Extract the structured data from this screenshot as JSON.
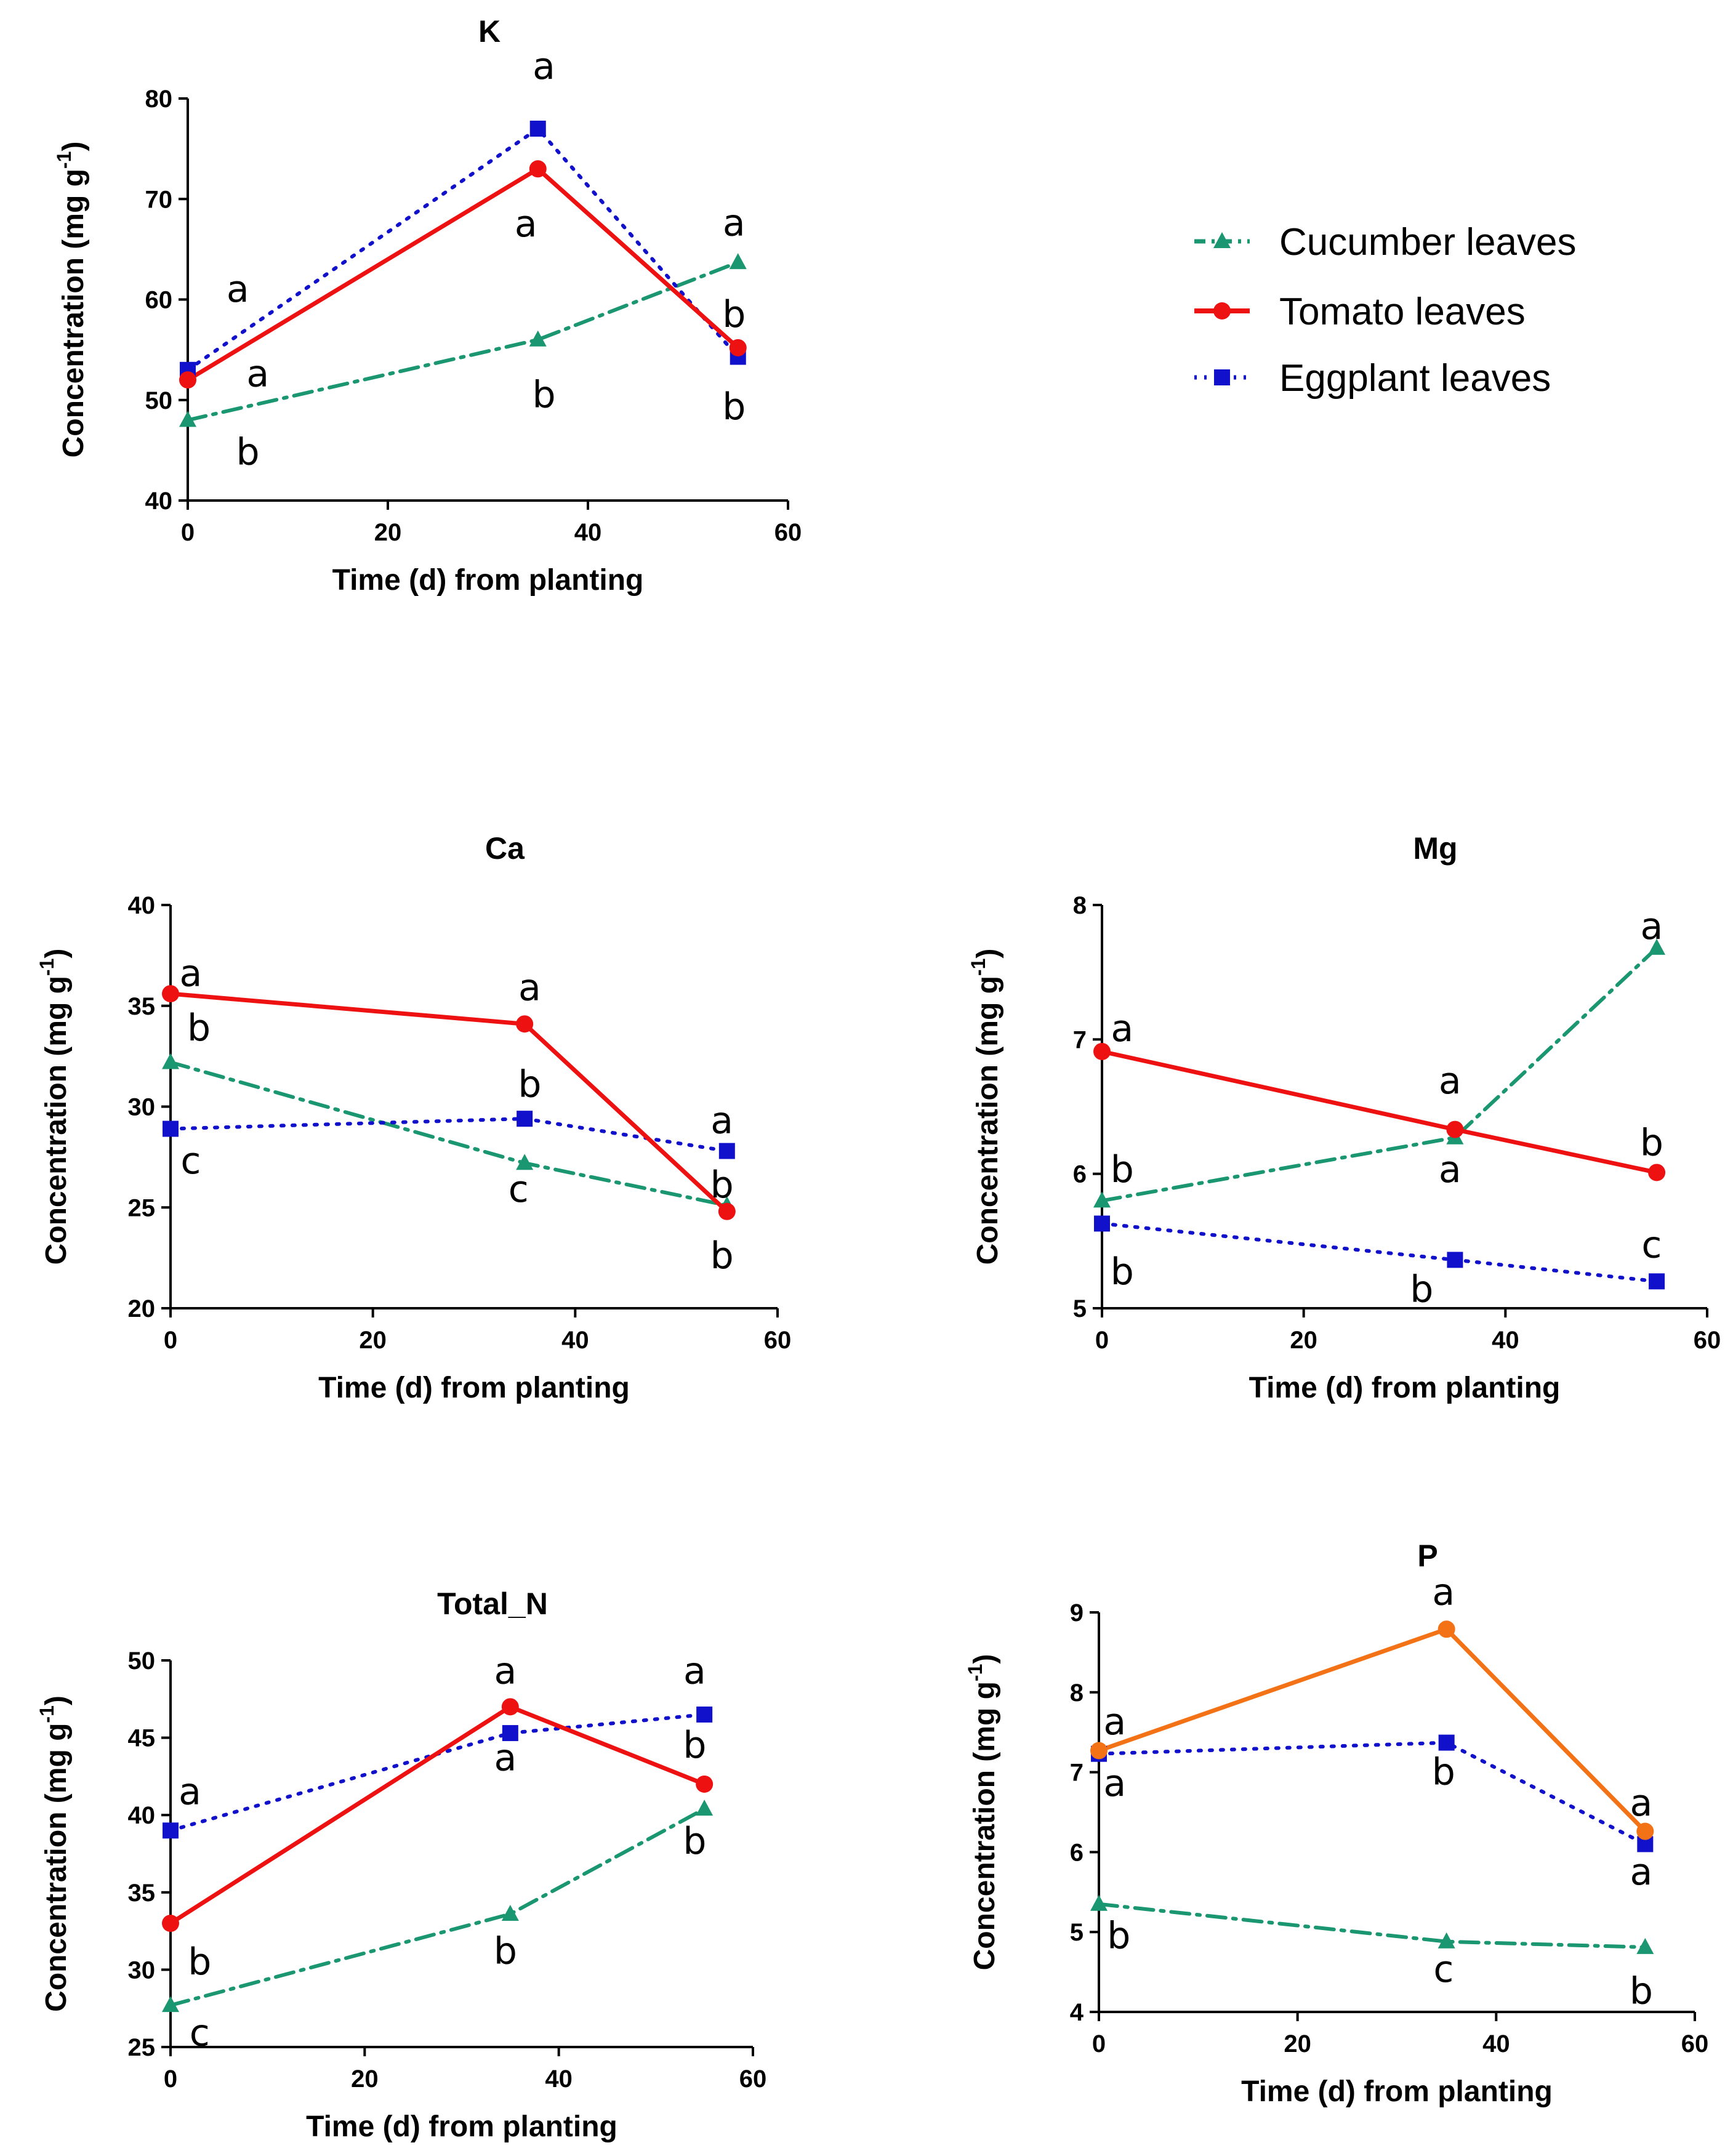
{
  "legend": {
    "items": [
      {
        "label": "Cucumber leaves",
        "series": "cucumber"
      },
      {
        "label": "Tomato leaves",
        "series": "tomato"
      },
      {
        "label": "Eggplant leaves",
        "series": "eggplant"
      }
    ]
  },
  "styles": {
    "cucumber": {
      "color": "#1a9670",
      "marker": "triangle",
      "dash": "dashdot"
    },
    "tomato": {
      "color": "#ee1111",
      "marker": "circle",
      "dash": "solid"
    },
    "eggplant": {
      "color": "#1111cc",
      "marker": "square",
      "dash": "dotted"
    }
  },
  "chart_data": [
    {
      "id": "K",
      "type": "line",
      "title": "K",
      "xlabel": "Time (d) from planting",
      "ylabel_main": "Concentration (mg g",
      "ylabel_sup": "-1",
      "ylabel_end": ")",
      "xlim": [
        0,
        60
      ],
      "ylim": [
        40,
        80
      ],
      "xticks": [
        "0",
        "20",
        "40",
        "60"
      ],
      "yticks": [
        "40",
        "50",
        "60",
        "70",
        "80"
      ],
      "x": [
        0,
        35,
        55
      ],
      "series": [
        {
          "name": "Cucumber leaves",
          "key": "cucumber",
          "values": [
            48,
            56,
            63.7
          ]
        },
        {
          "name": "Tomato leaves",
          "key": "tomato",
          "values": [
            52,
            73,
            55.2
          ]
        },
        {
          "name": "Eggplant leaves",
          "key": "eggplant",
          "values": [
            53,
            77,
            54.3
          ]
        }
      ],
      "annotations": [
        {
          "text": "a",
          "x": 5,
          "y": 61
        },
        {
          "text": "a",
          "x": 7,
          "y": 52.6
        },
        {
          "text": "b",
          "x": 6,
          "y": 44.8
        },
        {
          "text": "a",
          "x": 35.6,
          "y": 83.2
        },
        {
          "text": "a",
          "x": 33.8,
          "y": 67.5
        },
        {
          "text": "b",
          "x": 35.6,
          "y": 50.5
        },
        {
          "text": "a",
          "x": 54.6,
          "y": 67.6
        },
        {
          "text": "b",
          "x": 54.6,
          "y": 58.5
        },
        {
          "text": "b",
          "x": 54.6,
          "y": 49.3
        }
      ]
    },
    {
      "id": "Ca",
      "type": "line",
      "title": "Ca",
      "xlabel": "Time (d) from planting",
      "ylabel_main": "Concentration (mg g",
      "ylabel_sup": "-1",
      "ylabel_end": ")",
      "xlim": [
        0,
        60
      ],
      "ylim": [
        20,
        40
      ],
      "xticks": [
        "0",
        "20",
        "40",
        "60"
      ],
      "yticks": [
        "20",
        "25",
        "30",
        "35",
        "40"
      ],
      "x": [
        0,
        35,
        55
      ],
      "series": [
        {
          "name": "Cucumber leaves",
          "key": "cucumber",
          "values": [
            32.2,
            27.2,
            25.1
          ]
        },
        {
          "name": "Tomato leaves",
          "key": "tomato",
          "values": [
            35.6,
            34.1,
            24.8
          ]
        },
        {
          "name": "Eggplant leaves",
          "key": "eggplant",
          "values": [
            28.9,
            29.4,
            27.8
          ]
        }
      ],
      "annotations": [
        {
          "text": "a",
          "x": 2,
          "y": 36.6
        },
        {
          "text": "b",
          "x": 2.8,
          "y": 33.9
        },
        {
          "text": "c",
          "x": 2,
          "y": 27.3
        },
        {
          "text": "a",
          "x": 35.5,
          "y": 35.9
        },
        {
          "text": "b",
          "x": 35.5,
          "y": 31.1
        },
        {
          "text": "c",
          "x": 34.4,
          "y": 25.9
        },
        {
          "text": "a",
          "x": 54.5,
          "y": 29.3
        },
        {
          "text": "b",
          "x": 54.5,
          "y": 26.1
        },
        {
          "text": "b",
          "x": 54.5,
          "y": 22.6
        }
      ]
    },
    {
      "id": "Mg",
      "type": "line",
      "title": "Mg",
      "xlabel": "Time (d) from planting",
      "ylabel_main": "Concentration (mg g",
      "ylabel_sup": "-1",
      "ylabel_end": ")",
      "xlim": [
        0,
        60
      ],
      "ylim": [
        5,
        8
      ],
      "xticks": [
        "0",
        "20",
        "40",
        "60"
      ],
      "yticks": [
        "5",
        "6",
        "7",
        "8"
      ],
      "x": [
        0,
        35,
        55
      ],
      "series": [
        {
          "name": "Cucumber leaves",
          "key": "cucumber",
          "values": [
            5.8,
            6.27,
            7.68
          ]
        },
        {
          "name": "Tomato leaves",
          "key": "tomato",
          "values": [
            6.91,
            6.33,
            6.01
          ]
        },
        {
          "name": "Eggplant leaves",
          "key": "eggplant",
          "values": [
            5.63,
            5.36,
            5.2
          ]
        }
      ],
      "annotations": [
        {
          "text": "a",
          "x": 2,
          "y": 7.08
        },
        {
          "text": "b",
          "x": 2,
          "y": 6.03
        },
        {
          "text": "b",
          "x": 2,
          "y": 5.27
        },
        {
          "text": "a",
          "x": 34.5,
          "y": 6.69
        },
        {
          "text": "a",
          "x": 34.5,
          "y": 6.03
        },
        {
          "text": "b",
          "x": 31.7,
          "y": 5.14
        },
        {
          "text": "a",
          "x": 54.5,
          "y": 7.84
        },
        {
          "text": "b",
          "x": 54.5,
          "y": 6.23
        },
        {
          "text": "c",
          "x": 54.5,
          "y": 5.47
        }
      ]
    },
    {
      "id": "Total_N",
      "type": "line",
      "title": "Total_N",
      "xlabel": "Time (d) from planting",
      "ylabel_main": "Concentration (mg g",
      "ylabel_sup": "-1",
      "ylabel_end": ")",
      "xlim": [
        0,
        60
      ],
      "ylim": [
        25,
        50
      ],
      "xticks": [
        "0",
        "20",
        "40",
        "60"
      ],
      "yticks": [
        "25",
        "30",
        "35",
        "40",
        "45",
        "50"
      ],
      "x": [
        0,
        35,
        55
      ],
      "series": [
        {
          "name": "Cucumber leaves",
          "key": "cucumber",
          "values": [
            27.7,
            33.6,
            40.4
          ]
        },
        {
          "name": "Tomato leaves",
          "key": "tomato",
          "values": [
            33,
            47,
            42
          ]
        },
        {
          "name": "Eggplant leaves",
          "key": "eggplant",
          "values": [
            39,
            45.3,
            46.5
          ]
        }
      ],
      "annotations": [
        {
          "text": "a",
          "x": 2,
          "y": 41.5
        },
        {
          "text": "b",
          "x": 3,
          "y": 30.5
        },
        {
          "text": "c",
          "x": 3,
          "y": 25.9
        },
        {
          "text": "a",
          "x": 34.5,
          "y": 49.3
        },
        {
          "text": "a",
          "x": 34.5,
          "y": 43.7
        },
        {
          "text": "b",
          "x": 34.5,
          "y": 31.2
        },
        {
          "text": "a",
          "x": 54,
          "y": 49.3
        },
        {
          "text": "b",
          "x": 54,
          "y": 44.5
        },
        {
          "text": "b",
          "x": 54,
          "y": 38.3
        }
      ]
    },
    {
      "id": "P",
      "type": "line",
      "title": "P",
      "xlabel": "Time (d) from planting",
      "ylabel_main": "Concentration (mg g",
      "ylabel_sup": "-1",
      "ylabel_end": ")",
      "xlim": [
        0,
        60
      ],
      "ylim": [
        4,
        9
      ],
      "xticks": [
        "0",
        "20",
        "40",
        "60"
      ],
      "yticks": [
        "4",
        "5",
        "6",
        "7",
        "8",
        "9"
      ],
      "x": [
        0,
        35,
        55
      ],
      "series": [
        {
          "name": "Cucumber leaves",
          "key": "cucumber",
          "values": [
            5.35,
            4.88,
            4.81
          ]
        },
        {
          "name": "Tomato leaves",
          "key": "tomato",
          "values": [
            7.27,
            8.79,
            6.26
          ],
          "color": "#f47216"
        },
        {
          "name": "Eggplant leaves",
          "key": "eggplant",
          "values": [
            7.23,
            7.37,
            6.1
          ]
        }
      ],
      "annotations": [
        {
          "text": "a",
          "x": 1.6,
          "y": 7.63
        },
        {
          "text": "a",
          "x": 1.6,
          "y": 6.86
        },
        {
          "text": "b",
          "x": 2,
          "y": 4.95
        },
        {
          "text": "a",
          "x": 34.7,
          "y": 9.25
        },
        {
          "text": "b",
          "x": 34.7,
          "y": 7.0
        },
        {
          "text": "c",
          "x": 34.7,
          "y": 4.53
        },
        {
          "text": "a",
          "x": 54.6,
          "y": 6.61
        },
        {
          "text": "a",
          "x": 54.6,
          "y": 5.75
        },
        {
          "text": "b",
          "x": 54.6,
          "y": 4.26
        }
      ]
    }
  ]
}
